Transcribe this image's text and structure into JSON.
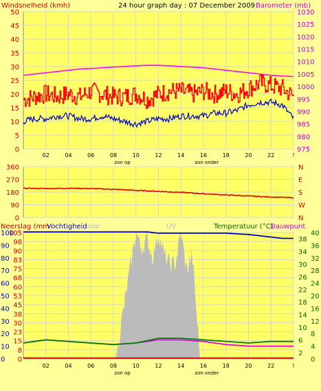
{
  "header": {
    "wind_label": "Windsnelheid (kmh)",
    "title": "24 hour graph day : 07 December 2009",
    "baro_label": "Barometer (mb)"
  },
  "colors": {
    "background": "#FFFF99",
    "plot_bg": "#FFFF66",
    "grid": "#D4D4D4",
    "wind_speed": "#FF0000",
    "wind_gust": "#CC0000",
    "wind_avg": "#0000C8",
    "barometer": "#FF00FF",
    "wind_dir": "#E00000",
    "humidity": "#0000CC",
    "solar": "#BBBBBB",
    "temperature": "#008000",
    "dewpoint": "#E000E0",
    "rain": "#FF0000",
    "label_red": "#CC0000",
    "label_magenta": "#CC00CC",
    "label_green": "#006600"
  },
  "chart_data": [
    {
      "type": "line",
      "panel": "wind",
      "x_ticks": [
        "02",
        "04",
        "06",
        "08",
        "10",
        "12",
        "14",
        "16",
        "18",
        "20",
        "22",
        "!"
      ],
      "x_annotations": [
        "zon op",
        "zon onder"
      ],
      "left_axis": {
        "label": "Windsnelheid (kmh)",
        "ylim": [
          0,
          50
        ],
        "ticks": [
          0,
          5,
          10,
          15,
          20,
          25,
          30,
          35,
          40,
          45,
          50
        ]
      },
      "right_axis": {
        "label": "Barometer (mb)",
        "ylim": [
          975,
          1030
        ],
        "ticks": [
          975,
          980,
          985,
          990,
          995,
          1000,
          1005,
          1010,
          1015,
          1020,
          1025,
          1030
        ]
      },
      "series": [
        {
          "axis": "left",
          "x": [
            0,
            1,
            2,
            3,
            4,
            5,
            6,
            7,
            8,
            9,
            10,
            11,
            12,
            13,
            14,
            15,
            16,
            17,
            18,
            19,
            20,
            21,
            22,
            23,
            24
          ],
          "values": [
            18,
            19,
            20,
            19,
            20,
            19,
            21,
            20,
            19,
            19,
            20,
            18,
            20,
            21,
            21,
            20,
            21,
            20,
            21,
            20,
            22,
            24,
            23,
            22,
            19
          ]
        },
        {
          "axis": "left",
          "x": [
            0,
            1,
            2,
            3,
            4,
            5,
            6,
            7,
            8,
            9,
            10,
            11,
            12,
            13,
            14,
            15,
            16,
            17,
            18,
            19,
            20,
            21,
            22,
            23,
            24
          ],
          "values": [
            10,
            11,
            11,
            12,
            12,
            11,
            11,
            12,
            11,
            10,
            9,
            10,
            11,
            11,
            12,
            12,
            12,
            13,
            13,
            14,
            16,
            17,
            17,
            16,
            11
          ]
        },
        {
          "axis": "right",
          "x": [
            0,
            1,
            2,
            3,
            4,
            5,
            6,
            7,
            8,
            9,
            10,
            11,
            12,
            13,
            14,
            15,
            16,
            17,
            18,
            19,
            20,
            21,
            22,
            23,
            24
          ],
          "values": [
            1004.5,
            1005,
            1005.5,
            1006,
            1006.5,
            1007,
            1007.2,
            1007.5,
            1007.8,
            1008,
            1008.3,
            1008.5,
            1008.5,
            1008.3,
            1008,
            1007.8,
            1007.5,
            1007,
            1006.5,
            1006,
            1005.5,
            1005,
            1004.5,
            1004.2,
            1004
          ]
        }
      ]
    },
    {
      "type": "line",
      "panel": "wind_direction",
      "y_ticks": [
        0,
        90,
        180,
        270,
        360
      ],
      "right_labels": [
        "N",
        "W",
        "S",
        "E",
        "N"
      ],
      "ylim": [
        0,
        360
      ],
      "x": [
        0,
        2,
        4,
        6,
        8,
        10,
        12,
        14,
        16,
        18,
        20,
        22,
        24
      ],
      "values": [
        207,
        205,
        207,
        205,
        200,
        192,
        185,
        178,
        168,
        160,
        152,
        145,
        140
      ]
    },
    {
      "type": "area",
      "panel": "weather",
      "legend": [
        "Neerslag (mm",
        "Vochtigheid",
        "olar",
        "UV",
        "Temperatuur (°C)",
        "Dauwpunt"
      ],
      "left_axis": {
        "ticks": [
          0,
          8,
          15,
          23,
          30,
          38,
          45,
          53,
          60,
          68,
          75,
          83,
          90,
          98,
          105
        ],
        "outer_ticks": [
          0,
          10,
          20,
          30,
          40,
          50,
          60,
          70,
          80,
          90,
          100
        ]
      },
      "right_axis": {
        "ticks": [
          0,
          2,
          4,
          6,
          8,
          10,
          12,
          14,
          16,
          18,
          20,
          22,
          24,
          26,
          28,
          30,
          32,
          34,
          36,
          38,
          40
        ],
        "ylim": [
          0,
          40
        ]
      },
      "x_ticks": [
        "02",
        "04",
        "06",
        "08",
        "10",
        "12",
        "14",
        "16",
        "18",
        "20",
        "22",
        "!"
      ],
      "x_annotations": [
        "zon op",
        "zon onder"
      ],
      "series": [
        {
          "name": "Vochtigheid",
          "x": [
            0,
            2,
            4,
            6,
            8,
            10,
            11,
            12,
            14,
            16,
            18,
            20,
            22,
            23,
            24
          ],
          "values": [
            98,
            98,
            98,
            98,
            98,
            98,
            98,
            97,
            97,
            97,
            97,
            96,
            94,
            93,
            93
          ]
        },
        {
          "name": "Temperatuur (°C)",
          "x": [
            0,
            2,
            4,
            6,
            8,
            10,
            12,
            14,
            16,
            18,
            20,
            22,
            24
          ],
          "values": [
            5,
            6,
            5.5,
            5,
            4.5,
            5,
            6.5,
            6.5,
            6,
            5.5,
            5,
            5.5,
            5.5
          ]
        },
        {
          "name": "Dauwpunt",
          "x": [
            0,
            2,
            4,
            6,
            8,
            10,
            12,
            14,
            16,
            18,
            20,
            22,
            24
          ],
          "values": [
            5,
            6,
            5.5,
            5,
            4.5,
            5,
            6,
            6,
            5.5,
            4.5,
            4,
            4,
            4
          ]
        },
        {
          "name": "olar",
          "x": [
            8.2,
            9,
            10,
            10.5,
            11,
            11.5,
            12,
            12.5,
            13,
            13.5,
            14,
            14.5,
            15,
            15.7
          ],
          "values": [
            0,
            18,
            40,
            35,
            38,
            32,
            40,
            33,
            30,
            30,
            40,
            28,
            33,
            0
          ]
        }
      ]
    }
  ],
  "panel2_axis_labels": {
    "left": [
      "0",
      "90",
      "180",
      "270",
      "360"
    ],
    "right": [
      "N",
      "W",
      "S",
      "E",
      "N"
    ]
  },
  "panel3_labels": {
    "neerslag": "Neerslag (mm",
    "vocht": "Vochtigheid",
    "solar": "olar",
    "uv": "UV",
    "temp": "Temperatuur (°C)",
    "dew": "Dauwpunt"
  }
}
